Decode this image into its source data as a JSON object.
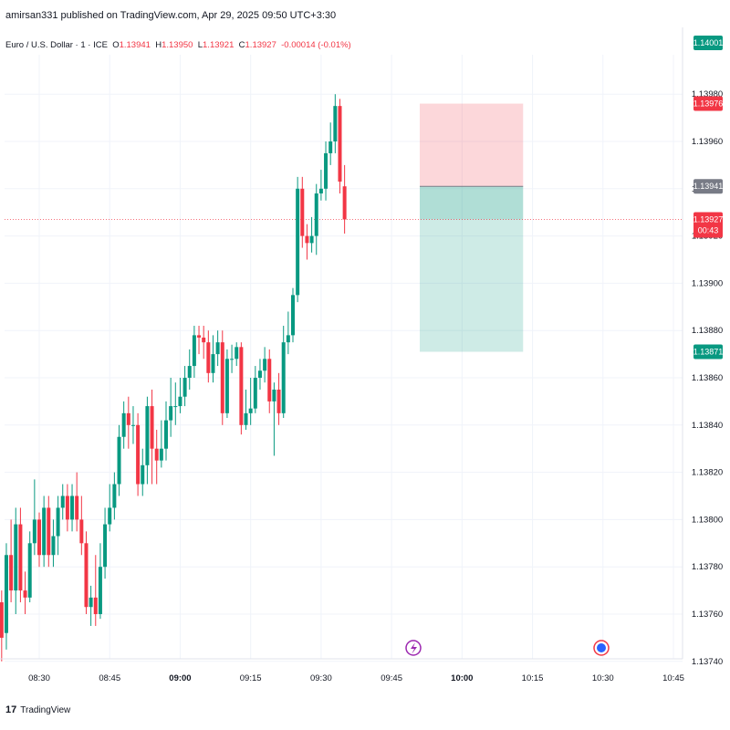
{
  "header": {
    "published": "amirsan331 published on TradingView.com, Apr 29, 2025 09:50 UTC+3:30"
  },
  "legend": {
    "symbol": "Euro / U.S. Dollar · 1 · ICE",
    "open_label": "O",
    "open": "1.13941",
    "high_label": "H",
    "high": "1.13950",
    "low_label": "L",
    "low": "1.13921",
    "close_label": "C",
    "close": "1.13927",
    "change": "-0.00014 (-0.01%)"
  },
  "footer": {
    "brand": "TradingView",
    "logo": "17"
  },
  "colors": {
    "up": "#089981",
    "down": "#f23645",
    "grid": "#f0f3fa"
  },
  "chart_data": {
    "type": "candlestick",
    "y_ticks": [
      "1.13980",
      "1.13960",
      "1.13940",
      "1.13920",
      "1.13900",
      "1.13880",
      "1.13860",
      "1.13840",
      "1.13820",
      "1.13800",
      "1.13780",
      "1.13760",
      "1.13740"
    ],
    "x_ticks": [
      "08:30",
      "08:45",
      "09:00",
      "09:15",
      "09:30",
      "09:45",
      "10:00",
      "10:15",
      "10:30",
      "10:45"
    ],
    "price_badges": [
      {
        "label": "1.14001",
        "price": 1.14001,
        "color": "#089981"
      },
      {
        "label": "1.13976",
        "price": 1.13976,
        "color": "#f23645"
      },
      {
        "label": "1.13941",
        "price": 1.13941,
        "color": "#787b86"
      },
      {
        "label": "1.13927",
        "price": 1.13927,
        "color": "#f23645",
        "sub": "00:43"
      },
      {
        "label": "1.13871",
        "price": 1.13871,
        "color": "#089981"
      }
    ],
    "position": {
      "entry": 1.13941,
      "stop": 1.13976,
      "target": 1.13871,
      "start_time": "09:51",
      "end_time": "10:13"
    },
    "current_price": 1.13927,
    "candles": [
      [
        1.13765,
        1.1375,
        1.1374,
        1.1377
      ],
      [
        1.13752,
        1.13785,
        1.13745,
        1.1379
      ],
      [
        1.13785,
        1.1377,
        1.13765,
        1.138
      ],
      [
        1.1377,
        1.13798,
        1.1376,
        1.13805
      ],
      [
        1.13798,
        1.1377,
        1.13765,
        1.13805
      ],
      [
        1.1377,
        1.13767,
        1.1376,
        1.13778
      ],
      [
        1.13767,
        1.1379,
        1.13765,
        1.13795
      ],
      [
        1.1379,
        1.138,
        1.13785,
        1.13817
      ],
      [
        1.138,
        1.13785,
        1.1378,
        1.13803
      ],
      [
        1.13785,
        1.13805,
        1.1378,
        1.1381
      ],
      [
        1.13805,
        1.13785,
        1.1378,
        1.1381
      ],
      [
        1.13785,
        1.13793,
        1.1378,
        1.138
      ],
      [
        1.13793,
        1.13805,
        1.13785,
        1.1381
      ],
      [
        1.13805,
        1.1381,
        1.138,
        1.13815
      ],
      [
        1.1381,
        1.138,
        1.13795,
        1.13815
      ],
      [
        1.138,
        1.1381,
        1.13795,
        1.13815
      ],
      [
        1.1381,
        1.138,
        1.13795,
        1.1382
      ],
      [
        1.138,
        1.1379,
        1.13785,
        1.1381
      ],
      [
        1.1379,
        1.13763,
        1.1376,
        1.13795
      ],
      [
        1.13763,
        1.13767,
        1.13755,
        1.13772
      ],
      [
        1.13767,
        1.1376,
        1.13755,
        1.13785
      ],
      [
        1.1376,
        1.1378,
        1.13758,
        1.1379
      ],
      [
        1.1378,
        1.13798,
        1.13775,
        1.13805
      ],
      [
        1.13798,
        1.13805,
        1.13795,
        1.13815
      ],
      [
        1.13805,
        1.13815,
        1.138,
        1.1382
      ],
      [
        1.13815,
        1.13835,
        1.1381,
        1.1384
      ],
      [
        1.13835,
        1.13845,
        1.1383,
        1.1385
      ],
      [
        1.13845,
        1.1384,
        1.1383,
        1.13852
      ],
      [
        1.1384,
        1.1384,
        1.13832,
        1.13848
      ],
      [
        1.1384,
        1.13815,
        1.1381,
        1.13845
      ],
      [
        1.13815,
        1.13823,
        1.1381,
        1.1383
      ],
      [
        1.13823,
        1.13848,
        1.13815,
        1.13852
      ],
      [
        1.13848,
        1.1383,
        1.13815,
        1.13855
      ],
      [
        1.1383,
        1.13825,
        1.13815,
        1.13838
      ],
      [
        1.13825,
        1.1383,
        1.13822,
        1.13842
      ],
      [
        1.1383,
        1.13842,
        1.13825,
        1.1385
      ],
      [
        1.13842,
        1.13848,
        1.13835,
        1.1386
      ],
      [
        1.13848,
        1.13848,
        1.1384,
        1.13858
      ],
      [
        1.13848,
        1.13852,
        1.13845,
        1.1386
      ],
      [
        1.13852,
        1.1386,
        1.13848,
        1.13865
      ],
      [
        1.1386,
        1.13865,
        1.13855,
        1.13872
      ],
      [
        1.13865,
        1.13878,
        1.1386,
        1.13882
      ],
      [
        1.13878,
        1.13877,
        1.1387,
        1.13882
      ],
      [
        1.13877,
        1.13875,
        1.13868,
        1.13882
      ],
      [
        1.13875,
        1.13862,
        1.13858,
        1.1388
      ],
      [
        1.13862,
        1.1387,
        1.13858,
        1.13878
      ],
      [
        1.1387,
        1.13875,
        1.13865,
        1.1388
      ],
      [
        1.13875,
        1.13845,
        1.1384,
        1.1388
      ],
      [
        1.13845,
        1.13868,
        1.13843,
        1.13872
      ],
      [
        1.13868,
        1.13868,
        1.13862,
        1.13874
      ],
      [
        1.13868,
        1.13873,
        1.13865,
        1.13875
      ],
      [
        1.13873,
        1.1384,
        1.13836,
        1.13875
      ],
      [
        1.1384,
        1.13845,
        1.13838,
        1.13855
      ],
      [
        1.13845,
        1.13847,
        1.1384,
        1.1386
      ],
      [
        1.13847,
        1.1386,
        1.13845,
        1.13865
      ],
      [
        1.1386,
        1.13863,
        1.13855,
        1.13868
      ],
      [
        1.13863,
        1.13868,
        1.13858,
        1.13873
      ],
      [
        1.13868,
        1.1385,
        1.13845,
        1.13872
      ],
      [
        1.1385,
        1.13855,
        1.13827,
        1.13858
      ],
      [
        1.13855,
        1.13845,
        1.1384,
        1.13862
      ],
      [
        1.13845,
        1.13875,
        1.13843,
        1.13882
      ],
      [
        1.13875,
        1.13878,
        1.1387,
        1.13888
      ],
      [
        1.13878,
        1.13895,
        1.13875,
        1.13898
      ],
      [
        1.13895,
        1.1394,
        1.13892,
        1.13945
      ],
      [
        1.1394,
        1.1392,
        1.13915,
        1.13945
      ],
      [
        1.1392,
        1.13917,
        1.1391,
        1.13925
      ],
      [
        1.13917,
        1.1392,
        1.13913,
        1.13928
      ],
      [
        1.1392,
        1.13938,
        1.13912,
        1.13942
      ],
      [
        1.13938,
        1.1394,
        1.13935,
        1.13948
      ],
      [
        1.1394,
        1.13955,
        1.13935,
        1.1396
      ],
      [
        1.13955,
        1.1396,
        1.1395,
        1.13968
      ],
      [
        1.1396,
        1.13975,
        1.13955,
        1.1398
      ],
      [
        1.13975,
        1.13943,
        1.13938,
        1.13978
      ],
      [
        1.13941,
        1.13927,
        1.13921,
        1.1395
      ]
    ]
  }
}
